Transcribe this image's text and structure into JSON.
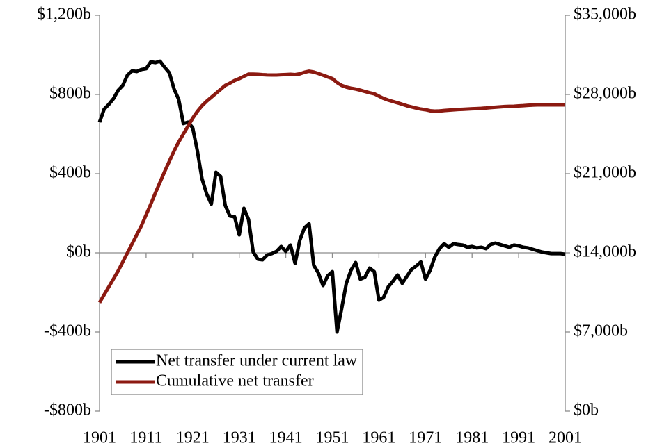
{
  "chart_data": {
    "type": "line",
    "x": [
      1901,
      1902,
      1903,
      1904,
      1905,
      1906,
      1907,
      1908,
      1909,
      1910,
      1911,
      1912,
      1913,
      1914,
      1915,
      1916,
      1917,
      1918,
      1919,
      1920,
      1921,
      1922,
      1923,
      1924,
      1925,
      1926,
      1927,
      1928,
      1929,
      1930,
      1931,
      1932,
      1933,
      1934,
      1935,
      1936,
      1937,
      1938,
      1939,
      1940,
      1941,
      1942,
      1943,
      1944,
      1945,
      1946,
      1947,
      1948,
      1949,
      1950,
      1951,
      1952,
      1953,
      1954,
      1955,
      1956,
      1957,
      1958,
      1959,
      1960,
      1961,
      1962,
      1963,
      1964,
      1965,
      1966,
      1967,
      1968,
      1969,
      1970,
      1971,
      1972,
      1973,
      1974,
      1975,
      1976,
      1977,
      1978,
      1979,
      1980,
      1981,
      1982,
      1983,
      1984,
      1985,
      1986,
      1987,
      1988,
      1989,
      1990,
      1991,
      1992,
      1993,
      1994,
      1995,
      1996,
      1997,
      1998,
      1999,
      2000,
      2001
    ],
    "series": [
      {
        "name": "Net transfer under current law",
        "color": "#000000",
        "axis": "y",
        "values": [
          660,
          726,
          750,
          779,
          821,
          846,
          898,
          919,
          916,
          926,
          930,
          965,
          961,
          968,
          937,
          909,
          828,
          775,
          653,
          660,
          632,
          516,
          375,
          298,
          246,
          407,
          386,
          239,
          186,
          182,
          91,
          225,
          168,
          4,
          -32,
          -35,
          -11,
          -4,
          7,
          32,
          7,
          39,
          -53,
          63,
          126,
          147,
          -63,
          -102,
          -165,
          -116,
          -95,
          -400,
          -281,
          -154,
          -88,
          -49,
          -133,
          -123,
          -77,
          -95,
          -239,
          -225,
          -172,
          -144,
          -112,
          -154,
          -119,
          -84,
          -67,
          -46,
          -133,
          -88,
          -21,
          21,
          46,
          28,
          46,
          42,
          39,
          28,
          32,
          25,
          28,
          21,
          42,
          49,
          42,
          35,
          28,
          39,
          35,
          28,
          25,
          18,
          11,
          4,
          0,
          -4,
          -4,
          -4,
          -7
        ]
      },
      {
        "name": "Cumulative net transfer",
        "color": "#8c1a11",
        "axis": "y2",
        "values": [
          9600,
          10300,
          11000,
          11700,
          12400,
          13200,
          14000,
          14800,
          15600,
          16400,
          17350,
          18300,
          19300,
          20250,
          21200,
          22100,
          23000,
          23800,
          24500,
          25200,
          25900,
          26500,
          27000,
          27400,
          27750,
          28100,
          28450,
          28800,
          29000,
          29230,
          29400,
          29600,
          29800,
          29800,
          29780,
          29750,
          29730,
          29720,
          29720,
          29740,
          29760,
          29780,
          29750,
          29820,
          29960,
          30050,
          29980,
          29850,
          29700,
          29550,
          29400,
          29050,
          28800,
          28650,
          28550,
          28480,
          28380,
          28260,
          28150,
          28060,
          27850,
          27650,
          27500,
          27380,
          27260,
          27130,
          27000,
          26900,
          26800,
          26710,
          26650,
          26560,
          26530,
          26540,
          26580,
          26610,
          26640,
          26670,
          26690,
          26710,
          26730,
          26750,
          26770,
          26800,
          26840,
          26870,
          26900,
          26930,
          26950,
          26960,
          26990,
          27010,
          27040,
          27060,
          27080,
          27080,
          27080,
          27080,
          27080,
          27080,
          27080
        ]
      }
    ],
    "xlim": [
      1901,
      2001
    ],
    "xticks": [
      1901,
      1911,
      1921,
      1931,
      1941,
      1951,
      1961,
      1971,
      1981,
      1991,
      2001
    ],
    "ylim": [
      -800,
      1200
    ],
    "yticks": [
      {
        "value": -800,
        "label": "-$800b"
      },
      {
        "value": -400,
        "label": "-$400b"
      },
      {
        "value": 0,
        "label": "$0b"
      },
      {
        "value": 400,
        "label": "$400b"
      },
      {
        "value": 800,
        "label": "$800b"
      },
      {
        "value": 1200,
        "label": "$1,200b"
      }
    ],
    "y2lim": [
      0,
      35000
    ],
    "y2ticks": [
      {
        "value": 0,
        "label": "$0b"
      },
      {
        "value": 7000,
        "label": "$7,000b"
      },
      {
        "value": 14000,
        "label": "$14,000b"
      },
      {
        "value": 21000,
        "label": "$21,000b"
      },
      {
        "value": 28000,
        "label": "$28,000b"
      },
      {
        "value": 35000,
        "label": "$35,000b"
      }
    ],
    "grid": false,
    "legend": "lower left"
  }
}
